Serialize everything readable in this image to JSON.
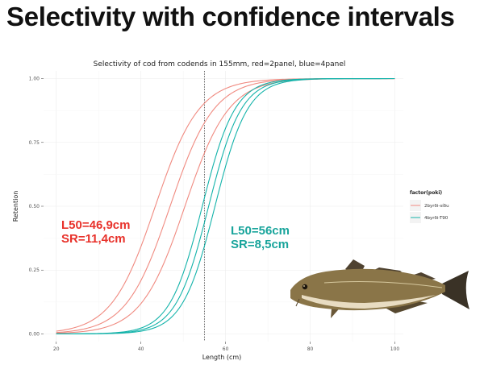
{
  "slide": {
    "title": "Selectivity with confidence intervals"
  },
  "chart_data": {
    "type": "line",
    "title": "Selectivity of cod from codends in 155mm, red=2panel, blue=4panel",
    "xlabel": "Length (cm)",
    "ylabel": "Retention",
    "xlim": [
      17,
      102
    ],
    "ylim": [
      -0.03,
      1.03
    ],
    "x_ticks": [
      20,
      40,
      60,
      80,
      100
    ],
    "y_ticks": [
      "0.00",
      "0.25",
      "0.50",
      "0.75",
      "1.00"
    ],
    "grid": true,
    "vline": 55,
    "legend": {
      "title": "factor(poki)",
      "position": "right",
      "entries": [
        {
          "name": "2byrði-síðu",
          "color": "#f08a80"
        },
        {
          "name": "4byrði-T90",
          "color": "#14b3aa"
        }
      ]
    },
    "series": [
      {
        "name": "2byrði-síðu",
        "color": "#f08a80",
        "l50": 46.9,
        "sr": 11.4,
        "band": [
          -3.5,
          0,
          3.5
        ]
      },
      {
        "name": "4byrði-T90",
        "color": "#14b3aa",
        "l50": 56,
        "sr": 8.5,
        "band": [
          -1.5,
          0,
          1.5
        ]
      }
    ],
    "annotations": [
      {
        "lines": [
          "L50=46,9cm",
          "SR=11,4cm"
        ],
        "color": "#e8312a"
      },
      {
        "lines": [
          "L50=56cm",
          "SR=8,5cm"
        ],
        "color": "#1aa59c"
      }
    ]
  }
}
